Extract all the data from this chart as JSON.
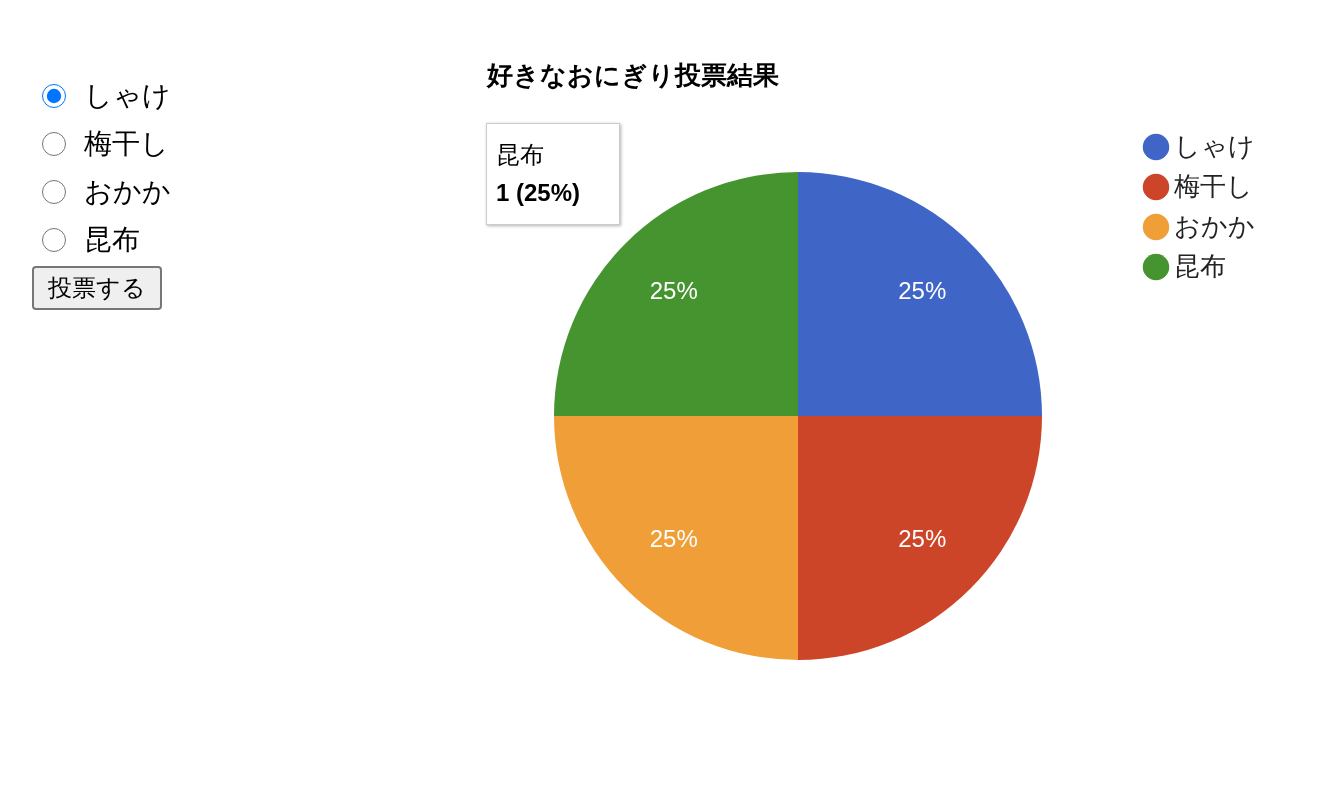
{
  "chart_data": {
    "type": "pie",
    "title": "好きなおにぎり投票結果",
    "categories": [
      "しゃけ",
      "梅干し",
      "おかか",
      "昆布"
    ],
    "values": [
      25,
      25,
      25,
      25
    ],
    "value_labels": [
      "25%",
      "25%",
      "25%",
      "25%"
    ],
    "colors": [
      "#3f66c6",
      "#cc4529",
      "#f09e38",
      "#46942f"
    ],
    "legend": "right",
    "annotations": [
      "昆布",
      "1 (25%)",
      "投票する"
    ]
  }
}
